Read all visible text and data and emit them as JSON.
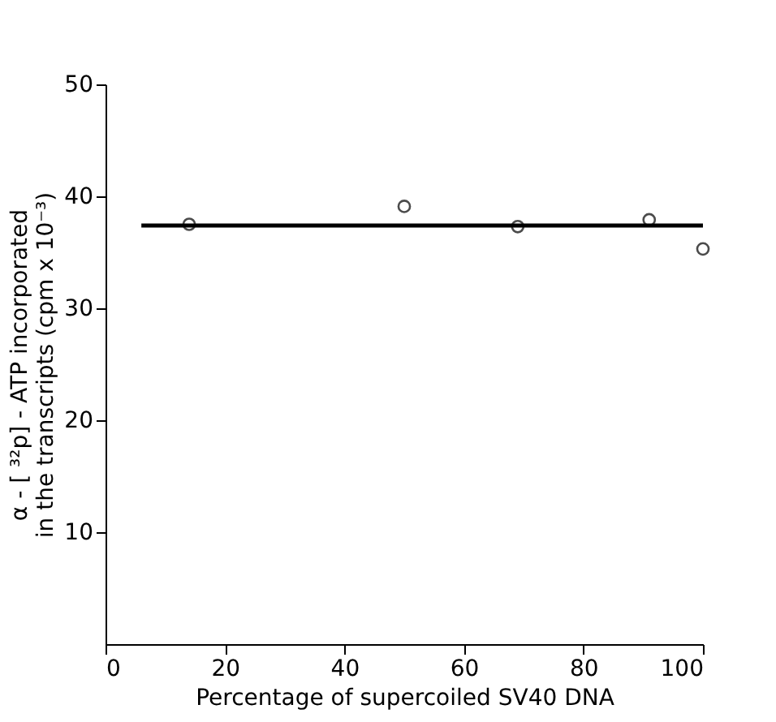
{
  "chart_data": {
    "type": "scatter",
    "xlabel": "Percentage of supercoiled SV40 DNA",
    "ylabel": "α - [ ³²p] - ATP incorporated in the transcripts (cpm x 10⁻³)",
    "xlim": [
      0,
      100
    ],
    "xticks": [
      0,
      20,
      40,
      60,
      80,
      100
    ],
    "ylim": [
      0,
      50
    ],
    "yticks": [
      10,
      20,
      30,
      40,
      50
    ],
    "grid": false,
    "marker": "circle",
    "series": [
      {
        "color": "#000000",
        "x": [
          14,
          50,
          69,
          91,
          100
        ],
        "values": [
          37.5,
          39.1,
          37.3,
          37.9,
          35.3
        ]
      },
      {
        "type": "line",
        "color": "#000000",
        "x": [
          6,
          100
        ],
        "values": [
          37.4,
          37.4
        ],
        "line_style": "solid",
        "marker": "none"
      }
    ]
  }
}
